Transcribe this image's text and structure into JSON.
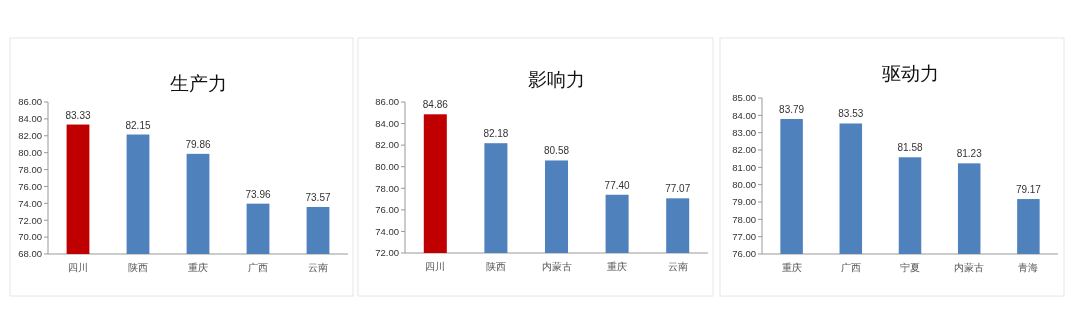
{
  "chart_data": [
    {
      "type": "bar",
      "title": "生产力",
      "categories": [
        "四川",
        "陕西",
        "重庆",
        "广西",
        "云南"
      ],
      "values": [
        83.33,
        82.15,
        79.86,
        73.96,
        73.57
      ],
      "colors": [
        "#c00000",
        "#4f81bd",
        "#4f81bd",
        "#4f81bd",
        "#4f81bd"
      ],
      "value_labels": [
        "83.33",
        "82.15",
        "79.86",
        "73.96",
        "73.57"
      ],
      "ylim": [
        68,
        86
      ],
      "yticks": [
        {
          "value": 68,
          "label": "68.00"
        },
        {
          "value": 70,
          "label": "70.00"
        },
        {
          "value": 72,
          "label": "72.00"
        },
        {
          "value": 74,
          "label": "74.00"
        },
        {
          "value": 76,
          "label": "76.00"
        },
        {
          "value": 78,
          "label": "78.00"
        },
        {
          "value": 80,
          "label": "80.00"
        },
        {
          "value": 82,
          "label": "82.00"
        },
        {
          "value": 84,
          "label": "84.00"
        },
        {
          "value": 86,
          "label": "86.00"
        }
      ]
    },
    {
      "type": "bar",
      "title": "影响力",
      "categories": [
        "四川",
        "陕西",
        "内蒙古",
        "重庆",
        "云南"
      ],
      "values": [
        84.86,
        82.18,
        80.58,
        77.4,
        77.07
      ],
      "colors": [
        "#c00000",
        "#4f81bd",
        "#4f81bd",
        "#4f81bd",
        "#4f81bd"
      ],
      "value_labels": [
        "84.86",
        "82.18",
        "80.58",
        "77.40",
        "77.07"
      ],
      "ylim": [
        72,
        86
      ],
      "yticks": [
        {
          "value": 72,
          "label": "72.00"
        },
        {
          "value": 74,
          "label": "74.00"
        },
        {
          "value": 76,
          "label": "76.00"
        },
        {
          "value": 78,
          "label": "78.00"
        },
        {
          "value": 80,
          "label": "80.00"
        },
        {
          "value": 82,
          "label": "82.00"
        },
        {
          "value": 84,
          "label": "84.00"
        },
        {
          "value": 86,
          "label": "86.00"
        }
      ]
    },
    {
      "type": "bar",
      "title": "驱动力",
      "categories": [
        "重庆",
        "广西",
        "宁夏",
        "内蒙古",
        "青海"
      ],
      "values": [
        83.79,
        83.53,
        81.58,
        81.23,
        79.17
      ],
      "colors": [
        "#4f81bd",
        "#4f81bd",
        "#4f81bd",
        "#4f81bd",
        "#4f81bd"
      ],
      "value_labels": [
        "83.79",
        "83.53",
        "81.58",
        "81.23",
        "79.17"
      ],
      "ylim": [
        76,
        85
      ],
      "yticks": [
        {
          "value": 76,
          "label": "76.00"
        },
        {
          "value": 77,
          "label": "77.00"
        },
        {
          "value": 78,
          "label": "78.00"
        },
        {
          "value": 79,
          "label": "79.00"
        },
        {
          "value": 80,
          "label": "80.00"
        },
        {
          "value": 81,
          "label": "81.00"
        },
        {
          "value": 82,
          "label": "82.00"
        },
        {
          "value": 83,
          "label": "83.00"
        },
        {
          "value": 84,
          "label": "84.00"
        },
        {
          "value": 85,
          "label": "85.00"
        }
      ]
    }
  ]
}
